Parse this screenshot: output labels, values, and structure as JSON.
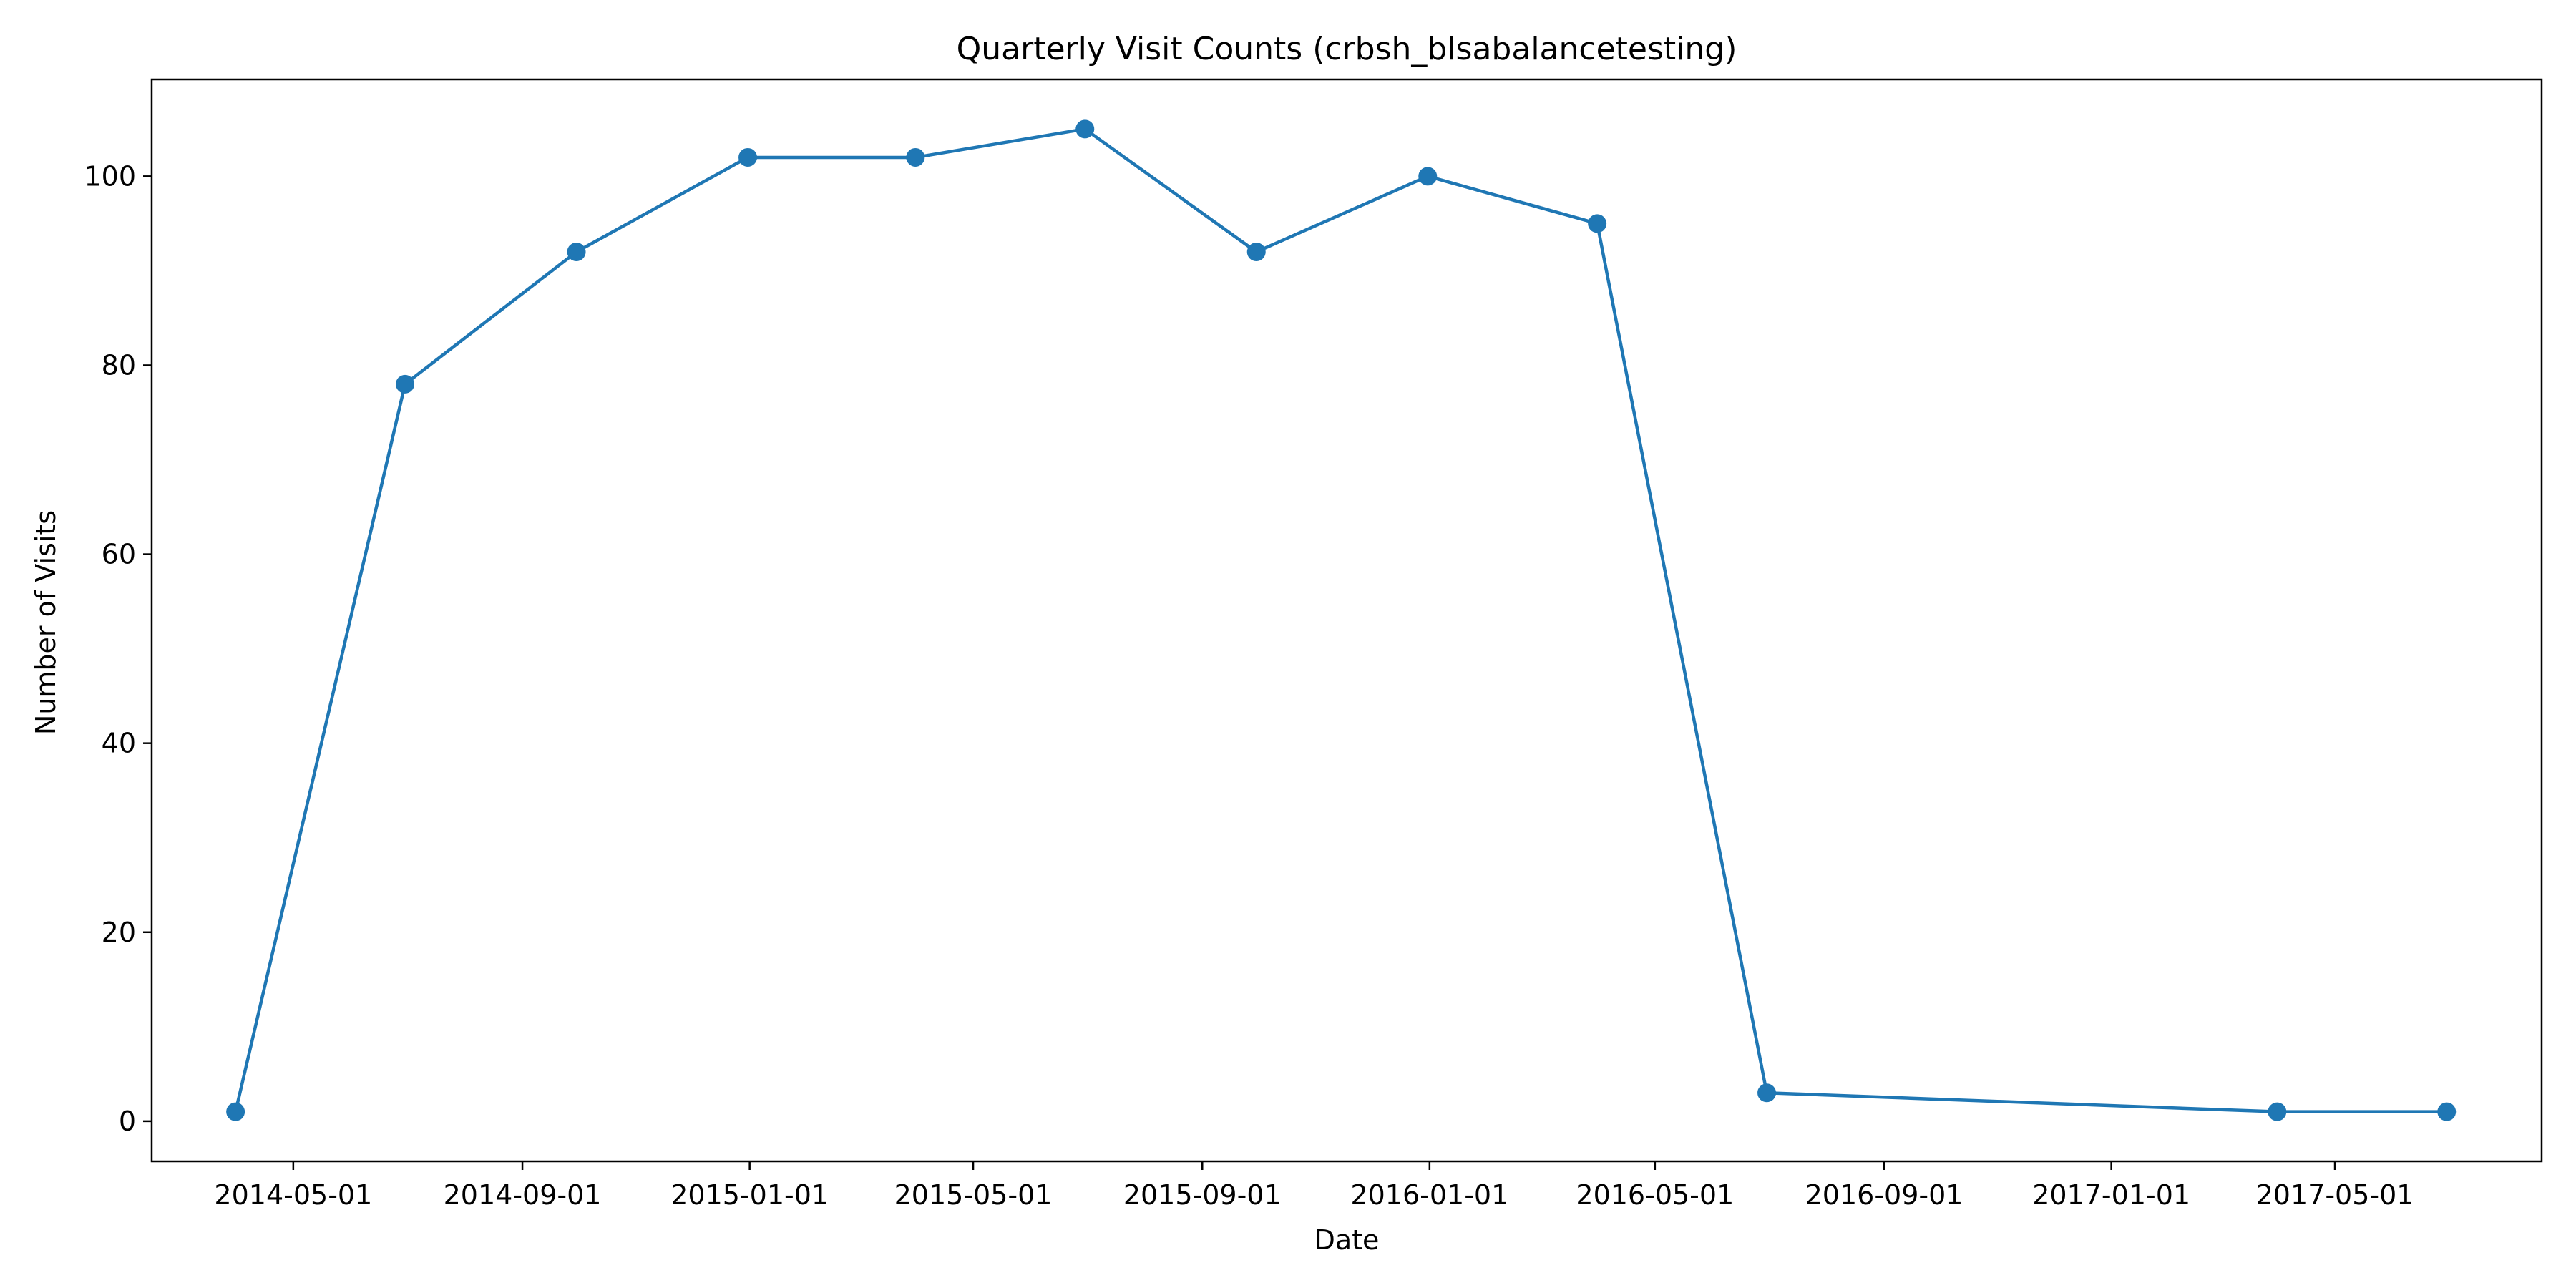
{
  "chart_data": {
    "type": "line",
    "title": "Quarterly Visit Counts (crbsh_blsabalancetesting)",
    "xlabel": "Date",
    "ylabel": "Number of Visits",
    "x_axis_type": "date",
    "xlim": [
      "2014-02-14",
      "2017-08-20"
    ],
    "ylim": [
      -4.25,
      110.25
    ],
    "x_ticks": [
      "2014-05-01",
      "2014-09-01",
      "2015-01-01",
      "2015-05-01",
      "2015-09-01",
      "2016-01-01",
      "2016-05-01",
      "2016-09-01",
      "2017-01-01",
      "2017-05-01"
    ],
    "y_ticks": [
      0,
      20,
      40,
      60,
      80,
      100
    ],
    "grid": false,
    "legend": false,
    "series": [
      {
        "color": "#1f77b4",
        "marker": "circle",
        "points": [
          {
            "x": "2014-03-31",
            "y": 1
          },
          {
            "x": "2014-06-30",
            "y": 78
          },
          {
            "x": "2014-09-30",
            "y": 92
          },
          {
            "x": "2014-12-31",
            "y": 102
          },
          {
            "x": "2015-03-31",
            "y": 102
          },
          {
            "x": "2015-06-30",
            "y": 105
          },
          {
            "x": "2015-09-30",
            "y": 92
          },
          {
            "x": "2015-12-31",
            "y": 100
          },
          {
            "x": "2016-03-31",
            "y": 95
          },
          {
            "x": "2016-06-30",
            "y": 3
          },
          {
            "x": "2017-03-31",
            "y": 1
          },
          {
            "x": "2017-06-30",
            "y": 1
          }
        ]
      }
    ]
  }
}
